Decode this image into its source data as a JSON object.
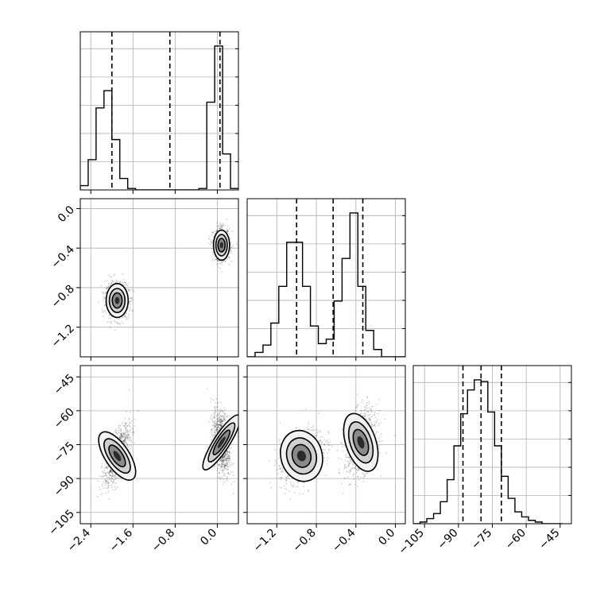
{
  "chart_data": {
    "type": "corner",
    "parameters": [
      {
        "range": [
          -2.6,
          0.4
        ],
        "ticks": [
          -2.4,
          -1.6,
          -0.8,
          0.0
        ],
        "tick_labels": [
          "−2.4",
          "−1.6",
          "−0.8",
          "0.0"
        ],
        "quantiles": [
          -2.0,
          -0.9,
          0.05
        ]
      },
      {
        "range": [
          -1.5,
          0.1
        ],
        "ticks": [
          -1.2,
          -0.8,
          -0.4,
          0.0
        ],
        "tick_labels": [
          "−1.2",
          "−0.8",
          "−0.4",
          "0.0"
        ],
        "quantiles": [
          -1.0,
          -0.63,
          -0.33
        ]
      },
      {
        "range": [
          -110,
          -40
        ],
        "ticks": [
          -105,
          -90,
          -75,
          -60,
          -45
        ],
        "tick_labels": [
          "−105",
          "−90",
          "−75",
          "−60",
          "−45"
        ],
        "quantiles": [
          -88,
          -80,
          -71
        ]
      }
    ],
    "histograms": [
      {
        "bins_edges": [
          -2.6,
          -2.45,
          -2.3,
          -2.15,
          -2.0,
          -1.85,
          -1.7,
          -1.55,
          -1.4,
          -1.25,
          -1.1,
          -0.95,
          -0.8,
          -0.65,
          -0.5,
          -0.35,
          -0.2,
          -0.05,
          0.1,
          0.25,
          0.4
        ],
        "counts": [
          0.03,
          0.21,
          0.57,
          0.69,
          0.35,
          0.08,
          0.01,
          0.0,
          0.0,
          0.0,
          0.0,
          0.0,
          0.0,
          0.0,
          0.0,
          0.01,
          0.61,
          1.0,
          0.25,
          0.01
        ]
      },
      {
        "bins_edges": [
          -1.5,
          -1.42,
          -1.34,
          -1.26,
          -1.18,
          -1.1,
          -1.02,
          -0.94,
          -0.86,
          -0.78,
          -0.7,
          -0.62,
          -0.54,
          -0.46,
          -0.38,
          -0.3,
          -0.22,
          -0.14,
          -0.06,
          0.02,
          0.1
        ],
        "counts": [
          0.0,
          0.03,
          0.08,
          0.23,
          0.48,
          0.78,
          0.78,
          0.48,
          0.21,
          0.09,
          0.12,
          0.38,
          0.67,
          0.98,
          0.48,
          0.18,
          0.05,
          0.0,
          0.0,
          0.0
        ]
      },
      {
        "bins_edges": [
          -110,
          -107,
          -104,
          -101,
          -98,
          -95,
          -92,
          -89,
          -86,
          -83,
          -80,
          -77,
          -74,
          -71,
          -68,
          -65,
          -62,
          -59,
          -56,
          -53,
          -50,
          -47,
          -44
        ],
        "counts": [
          0.0,
          0.01,
          0.03,
          0.06,
          0.13,
          0.26,
          0.46,
          0.65,
          0.79,
          0.85,
          0.84,
          0.66,
          0.46,
          0.28,
          0.15,
          0.07,
          0.04,
          0.02,
          0.01,
          0.0,
          0.0,
          0.0
        ]
      }
    ],
    "joint_modes": [
      {
        "pair": [
          0,
          1
        ],
        "modes": [
          {
            "center": [
              -1.9,
              -0.93
            ],
            "sd": [
              0.11,
              0.09
            ],
            "rho": 0.0
          },
          {
            "center": [
              0.08,
              -0.37
            ],
            "sd": [
              0.08,
              0.08
            ],
            "rho": 0.0
          }
        ]
      },
      {
        "pair": [
          0,
          2
        ],
        "modes": [
          {
            "center": [
              -1.9,
              -80
            ],
            "sd": [
              0.12,
              6.5
            ],
            "rho": 0.65
          },
          {
            "center": [
              0.08,
              -74
            ],
            "sd": [
              0.08,
              7.5
            ],
            "rho": -0.35
          }
        ]
      },
      {
        "pair": [
          1,
          2
        ],
        "modes": [
          {
            "center": [
              -0.95,
              -80
            ],
            "sd": [
              0.11,
              6.0
            ],
            "rho": 0.4
          },
          {
            "center": [
              -0.35,
              -74
            ],
            "sd": [
              0.08,
              7.0
            ],
            "rho": 0.3
          }
        ]
      }
    ]
  }
}
